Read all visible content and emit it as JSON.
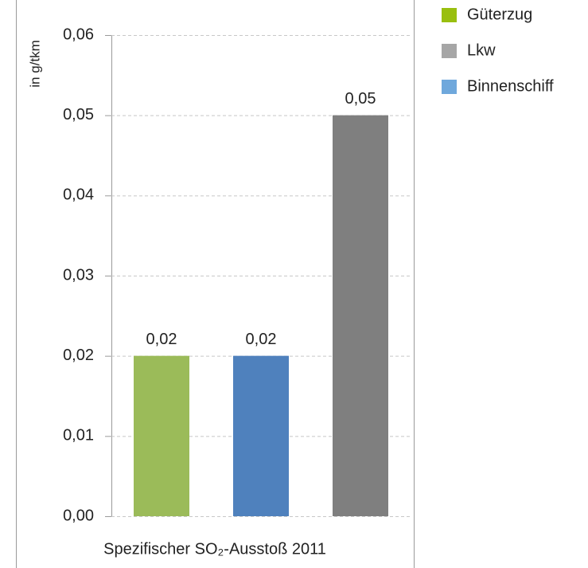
{
  "chart_data": {
    "type": "bar",
    "x_label": "Spezifischer SO₂-Ausstoß 2011",
    "y_label": "in g/tkm",
    "series": [
      {
        "name": "Güterzug",
        "color": "#9bbb59",
        "legend_color": "#99bf0f",
        "values": [
          0.02
        ],
        "value_labels": [
          "0,02"
        ]
      },
      {
        "name": "Binnenschiff",
        "color": "#4f81bd",
        "legend_color": "#6fa8dc",
        "values": [
          0.02
        ],
        "value_labels": [
          "0,02"
        ]
      },
      {
        "name": "Lkw",
        "color": "#7f7f7f",
        "legend_color": "#a6a6a6",
        "values": [
          0.05
        ],
        "value_labels": [
          "0,05"
        ]
      }
    ],
    "legend_order": [
      0,
      2,
      1
    ],
    "ylim": [
      0,
      0.06
    ],
    "yticks": [
      {
        "value": 0,
        "label": "0,00"
      },
      {
        "value": 0.01,
        "label": "0,01"
      },
      {
        "value": 0.02,
        "label": "0,02"
      },
      {
        "value": 0.03,
        "label": "0,03"
      },
      {
        "value": 0.04,
        "label": "0,04"
      },
      {
        "value": 0.05,
        "label": "0,05"
      },
      {
        "value": 0.06,
        "label": "0,06"
      }
    ],
    "grid": true
  }
}
